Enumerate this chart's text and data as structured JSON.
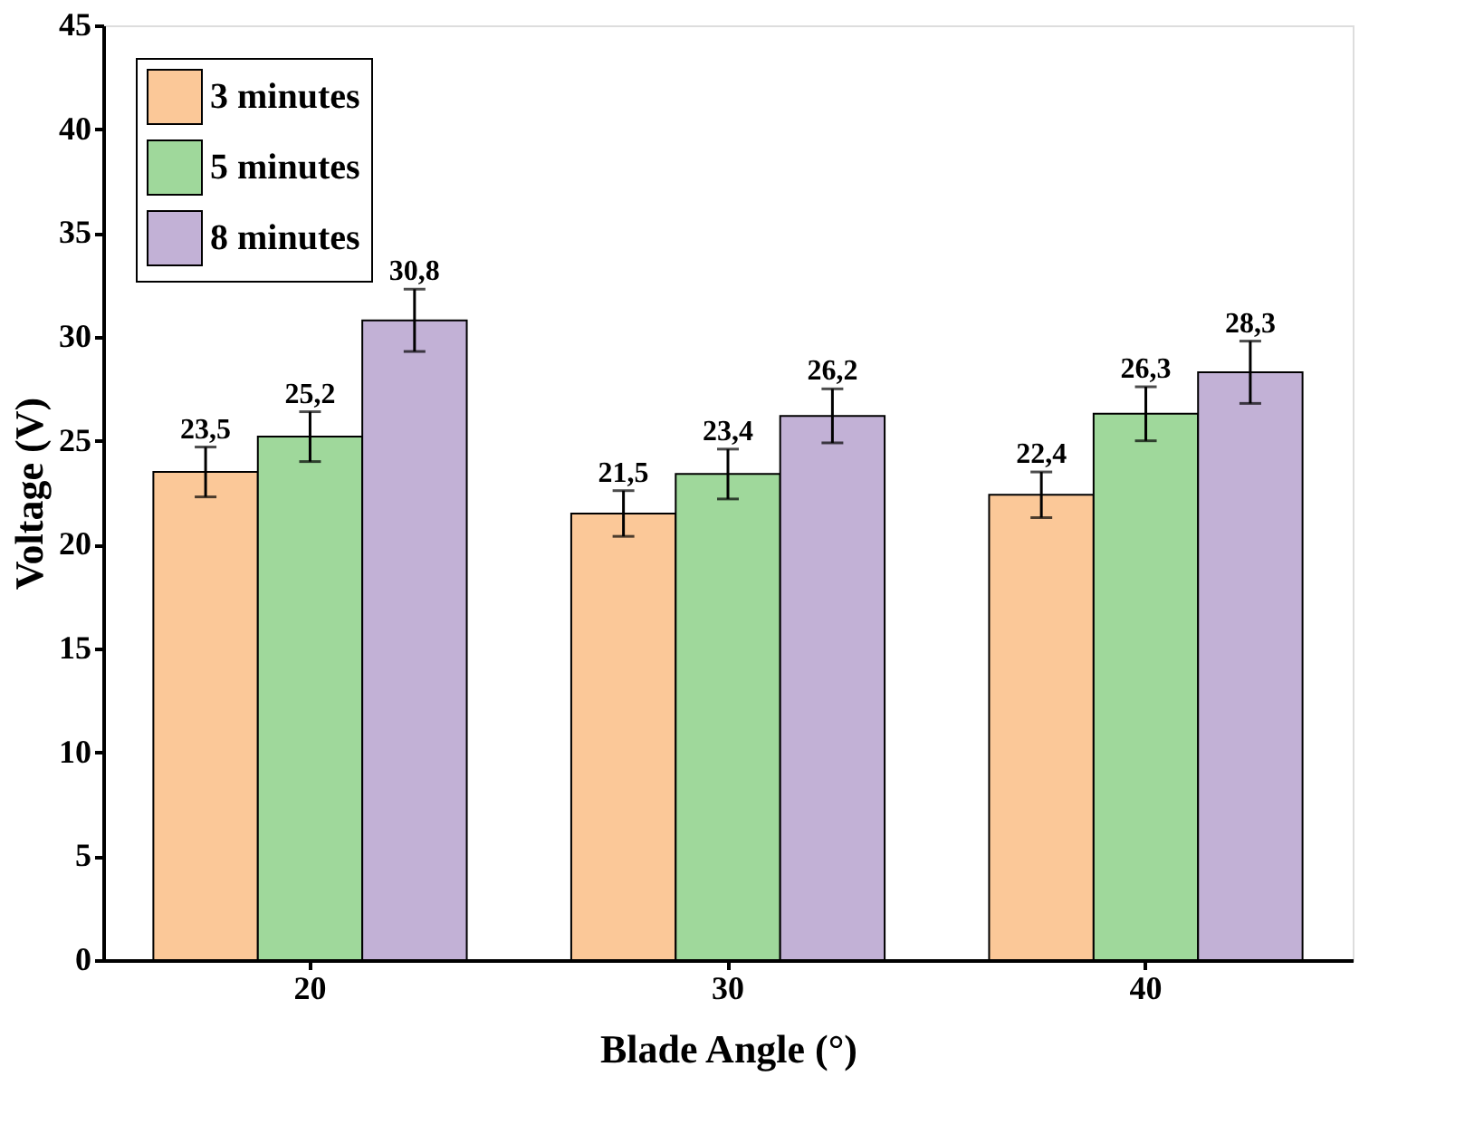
{
  "chart_data": {
    "type": "bar",
    "xlabel": "Blade Angle (°)",
    "ylabel": "Voltage (V)",
    "categories": [
      "20",
      "30",
      "40"
    ],
    "series": [
      {
        "name": "3 minutes",
        "color": "#fbc898",
        "values": [
          23.5,
          21.5,
          22.4
        ],
        "errors": [
          1.2,
          1.1,
          1.1
        ],
        "value_labels": [
          "23,5",
          "21,5",
          "22,4"
        ]
      },
      {
        "name": "5 minutes",
        "color": "#9fd89b",
        "values": [
          25.2,
          23.4,
          26.3
        ],
        "errors": [
          1.2,
          1.2,
          1.3
        ],
        "value_labels": [
          "25,2",
          "23,4",
          "26,3"
        ]
      },
      {
        "name": "8 minutes",
        "color": "#c2b1d6",
        "values": [
          30.8,
          26.2,
          28.3
        ],
        "errors": [
          1.5,
          1.3,
          1.5
        ],
        "value_labels": [
          "30,8",
          "26,2",
          "28,3"
        ]
      }
    ],
    "ylim": [
      0,
      45
    ],
    "yticks": [
      0,
      5,
      10,
      15,
      20,
      25,
      30,
      35,
      40,
      45
    ],
    "legend": "top left",
    "grid": false
  }
}
